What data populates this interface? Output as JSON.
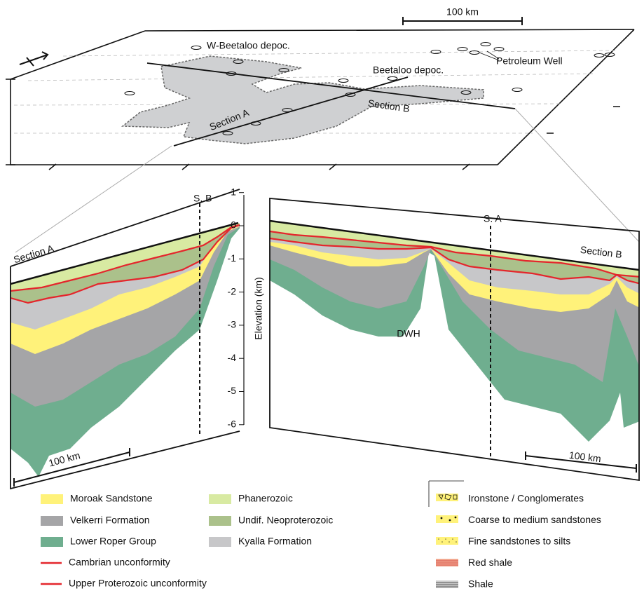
{
  "map": {
    "scale_label": "100 km",
    "w_beetaloo": "W-Beetaloo depoc.",
    "beetaloo": "Beetaloo depoc.",
    "petroleum_well": "Petroleum Well",
    "section_a": "Section A",
    "section_b": "Section B"
  },
  "section_a": {
    "title": "Section A",
    "crossing": "S. B",
    "scale_label": "100 km"
  },
  "section_b": {
    "title": "Section B",
    "crossing": "S. A",
    "scale_label": "100 km",
    "feature": "DWH"
  },
  "elevation_axis": {
    "label": "Elevation (km)",
    "ticks": [
      1,
      0,
      -1,
      -2,
      -3,
      -4,
      -5,
      -6
    ]
  },
  "legend": {
    "units": [
      {
        "name": "Moroak Sandstone",
        "color": "#fff27a"
      },
      {
        "name": "Velkerri Formation",
        "color": "#a5a5a7"
      },
      {
        "name": "Lower Roper Group",
        "color": "#6fae8f"
      },
      {
        "name": "Phanerozoic",
        "color": "#d8eaa2"
      },
      {
        "name": "Undif. Neoproterozoic",
        "color": "#abc18b"
      },
      {
        "name": "Kyalla Formation",
        "color": "#c7c7c9"
      }
    ],
    "lines": [
      {
        "name": "Cambrian unconformity",
        "color": "#e4262c"
      },
      {
        "name": "Upper Proterozoic unconformity",
        "color": "#e4262c"
      }
    ],
    "lithology": [
      "Ironstone / Conglomerates",
      "Coarse to medium sandstones",
      "Fine sandstones to silts",
      "Red shale",
      "Shale"
    ]
  }
}
